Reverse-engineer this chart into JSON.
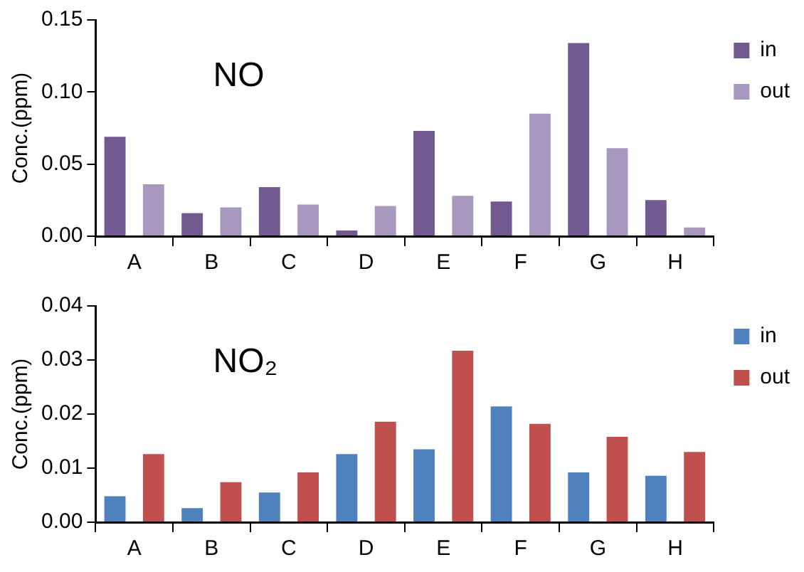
{
  "chart_data": [
    {
      "type": "bar",
      "ylabel": "Conc.(ppm)",
      "annotations": [
        "NO"
      ],
      "categories": [
        "A",
        "B",
        "C",
        "D",
        "E",
        "F",
        "G",
        "H"
      ],
      "series": [
        {
          "name": "in",
          "color": "#725990",
          "values": [
            0.069,
            0.016,
            0.034,
            0.004,
            0.073,
            0.024,
            0.134,
            0.025
          ]
        },
        {
          "name": "out",
          "color": "#a898c0",
          "values": [
            0.036,
            0.02,
            0.022,
            0.021,
            0.028,
            0.085,
            0.061,
            0.006
          ]
        }
      ],
      "ylim": [
        0,
        0.15
      ],
      "yticks": [
        {
          "value": 0,
          "label": "0.00"
        },
        {
          "value": 0.05,
          "label": "0.05"
        },
        {
          "value": 0.1,
          "label": "0.10"
        },
        {
          "value": 0.15,
          "label": "0.15"
        }
      ],
      "grid": false,
      "legend": "top right"
    },
    {
      "type": "bar",
      "ylabel": "Conc.(ppm)",
      "annotations": [
        "NO₂"
      ],
      "categories": [
        "A",
        "B",
        "C",
        "D",
        "E",
        "F",
        "G",
        "H"
      ],
      "series": [
        {
          "name": "in",
          "color": "#4f81bd",
          "values": [
            0.0048,
            0.0026,
            0.0055,
            0.0126,
            0.0135,
            0.0214,
            0.0092,
            0.0086
          ]
        },
        {
          "name": "out",
          "color": "#c0504d",
          "values": [
            0.0126,
            0.0074,
            0.0092,
            0.0186,
            0.0317,
            0.0182,
            0.0158,
            0.013
          ]
        }
      ],
      "ylim": [
        0,
        0.04
      ],
      "yticks": [
        {
          "value": 0,
          "label": "0.00"
        },
        {
          "value": 0.01,
          "label": "0.01"
        },
        {
          "value": 0.02,
          "label": "0.02"
        },
        {
          "value": 0.03,
          "label": "0.03"
        },
        {
          "value": 0.04,
          "label": "0.04"
        }
      ],
      "grid": false,
      "legend": "top right"
    }
  ]
}
